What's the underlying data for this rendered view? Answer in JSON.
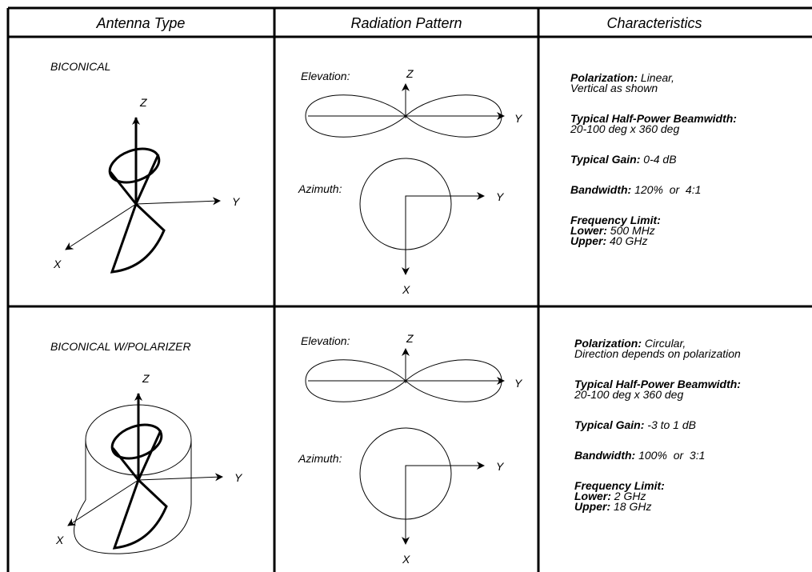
{
  "header": {
    "columns": [
      "Antenna Type",
      "Radiation Pattern",
      "Characteristics"
    ]
  },
  "rows": [
    {
      "antenna_type": "BICONICAL",
      "antenna_axes": {
        "z": "Z",
        "y": "Y",
        "x": "X"
      },
      "pattern": {
        "elevation_label": "Elevation:",
        "elevation_z": "Z",
        "elevation_y": "Y",
        "azimuth_label": "Azimuth:",
        "azimuth_y": "Y",
        "azimuth_x": "X"
      },
      "characteristics": [
        {
          "label": "Polarization:",
          "value": "Linear,",
          "lines": [
            "Vertical as shown"
          ]
        },
        {
          "label": "Typical Half-Power Beamwidth:",
          "lines": [
            "20-100 deg x 360 deg"
          ]
        },
        {
          "label": "Typical Gain:",
          "value": "0-4 dB"
        },
        {
          "label": "Bandwidth:",
          "value": "120%  or  4:1"
        },
        {
          "label": "Frequency Limit:",
          "items": [
            {
              "label": "Lower:",
              "value": "500 MHz"
            },
            {
              "label": "Upper:",
              "value": "40 GHz"
            }
          ]
        }
      ]
    },
    {
      "antenna_type": "BICONICAL W/POLARIZER",
      "antenna_axes": {
        "z": "Z",
        "y": "Y",
        "x": "X"
      },
      "pattern": {
        "elevation_label": "Elevation:",
        "elevation_z": "Z",
        "elevation_y": "Y",
        "azimuth_label": "Azimuth:",
        "azimuth_y": "Y",
        "azimuth_x": "X"
      },
      "characteristics": [
        {
          "label": "Polarization:",
          "value": "Circular,",
          "lines": [
            "Direction depends on polarization"
          ]
        },
        {
          "label": "Typical Half-Power Beamwidth:",
          "lines": [
            "20-100 deg x 360 deg"
          ]
        },
        {
          "label": "Typical Gain:",
          "value": "-3 to 1 dB"
        },
        {
          "label": "Bandwidth:",
          "value": "100%  or  3:1"
        },
        {
          "label": "Frequency Limit:",
          "items": [
            {
              "label": "Lower:",
              "value": "2 GHz"
            },
            {
              "label": "Upper:",
              "value": "18 GHz"
            }
          ]
        }
      ]
    }
  ]
}
